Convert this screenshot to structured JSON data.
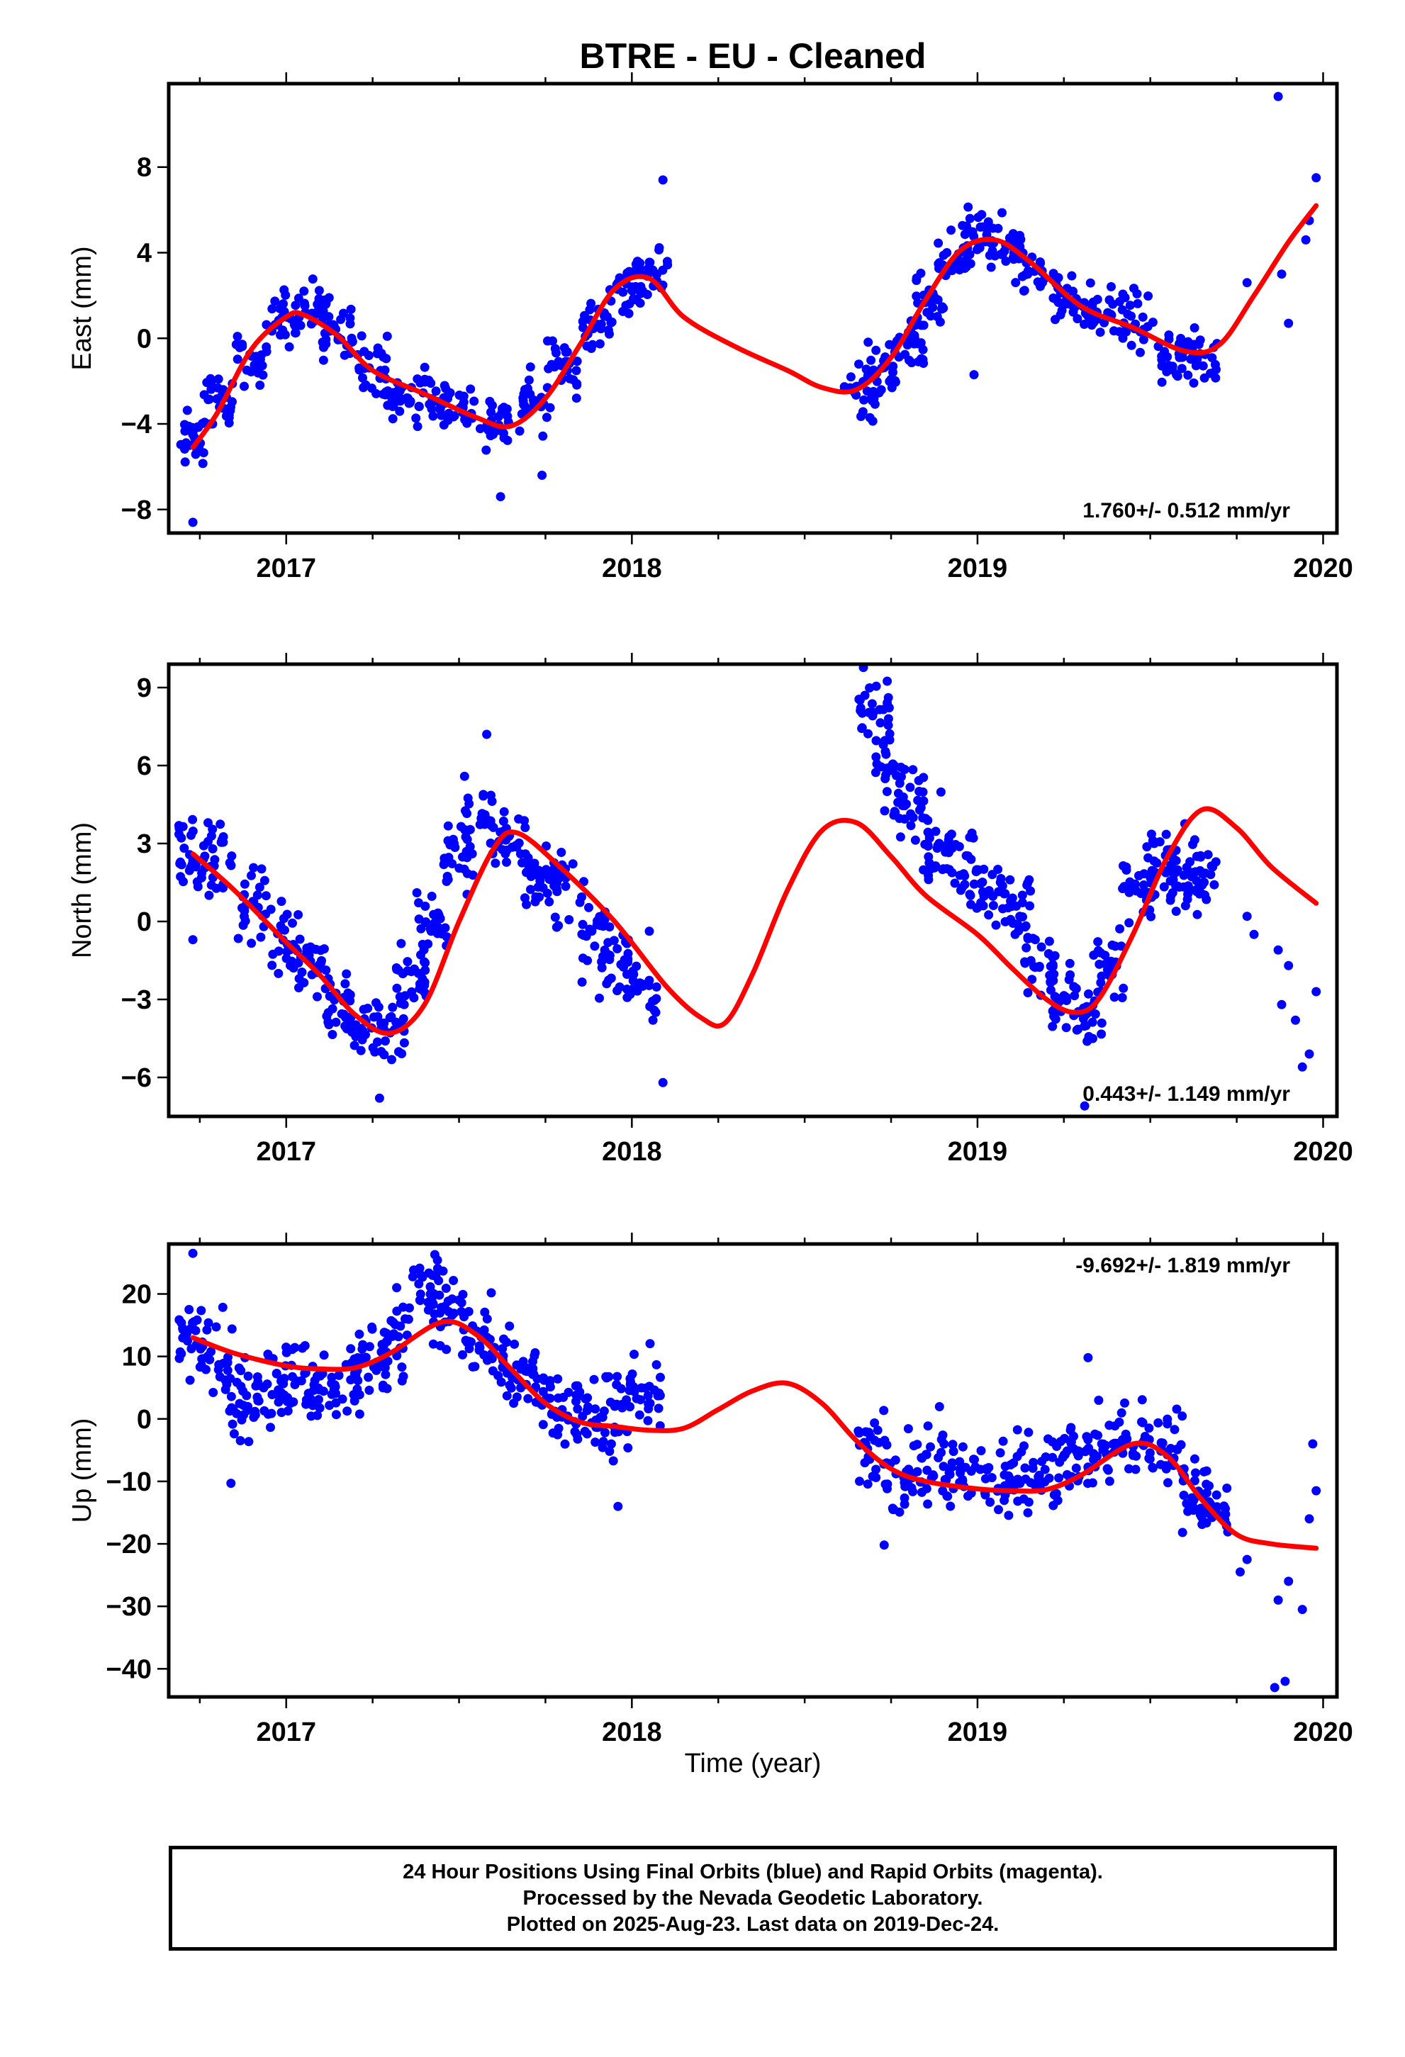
{
  "title": "BTRE  - EU - Cleaned",
  "xlabel": "Time (year)",
  "footer": {
    "line1": "24 Hour Positions Using Final Orbits (blue) and Rapid Orbits (magenta).",
    "line2": "Processed by the Nevada Geodetic Laboratory.",
    "line3": "Plotted on 2025-Aug-23. Last data on 2019-Dec-24."
  },
  "colors": {
    "points": "#0000ff",
    "fit": "#ff0000",
    "frame": "#000000"
  },
  "chart_data": [
    {
      "type": "scatter",
      "ylabel": "East (mm)",
      "rate_text": "1.760+/- 0.512 mm/yr",
      "rate_position": "bottom-right",
      "xlim": [
        2016.66,
        2020.04
      ],
      "ylim": [
        -9.1,
        11.9
      ],
      "yticks": [
        -8,
        -4,
        0,
        4,
        8
      ],
      "xticks": [
        2017,
        2018,
        2019,
        2020
      ],
      "legend": "none",
      "fit": {
        "x": [
          2016.73,
          2016.8,
          2016.9,
          2017.0,
          2017.05,
          2017.15,
          2017.25,
          2017.4,
          2017.55,
          2017.65,
          2017.75,
          2017.85,
          2017.95,
          2018.05,
          2018.15,
          2018.3,
          2018.45,
          2018.55,
          2018.65,
          2018.75,
          2018.85,
          2018.95,
          2019.05,
          2019.15,
          2019.3,
          2019.45,
          2019.6,
          2019.7,
          2019.8,
          2019.9,
          2019.98
        ],
        "y": [
          -5.1,
          -3.5,
          -0.5,
          1.0,
          1.1,
          0.1,
          -1.5,
          -2.6,
          -3.7,
          -4.1,
          -2.8,
          -0.3,
          2.3,
          2.8,
          1.0,
          -0.4,
          -1.5,
          -2.3,
          -2.4,
          -0.9,
          1.8,
          4.1,
          4.6,
          3.6,
          1.5,
          0.5,
          -0.6,
          -0.3,
          2.0,
          4.5,
          6.2
        ]
      },
      "clusters": [
        {
          "x": 2016.73,
          "y": -4.8
        },
        {
          "x": 2016.8,
          "y": -3.0
        },
        {
          "x": 2016.9,
          "y": -0.8
        },
        {
          "x": 2017.0,
          "y": 0.9
        },
        {
          "x": 2017.08,
          "y": 1.3
        },
        {
          "x": 2017.15,
          "y": 0.3
        },
        {
          "x": 2017.25,
          "y": -1.2
        },
        {
          "x": 2017.32,
          "y": -2.8
        },
        {
          "x": 2017.42,
          "y": -2.7
        },
        {
          "x": 2017.5,
          "y": -3.1
        },
        {
          "x": 2017.6,
          "y": -4.0
        },
        {
          "x": 2017.72,
          "y": -3.0
        },
        {
          "x": 2017.8,
          "y": -1.2
        },
        {
          "x": 2017.9,
          "y": 0.6
        },
        {
          "x": 2017.98,
          "y": 2.5
        },
        {
          "x": 2018.06,
          "y": 3.0
        },
        {
          "x": 2018.66,
          "y": -2.6
        },
        {
          "x": 2018.72,
          "y": -1.5
        },
        {
          "x": 2018.8,
          "y": -0.5
        },
        {
          "x": 2018.86,
          "y": 1.5
        },
        {
          "x": 2018.93,
          "y": 3.5
        },
        {
          "x": 2019.0,
          "y": 4.8
        },
        {
          "x": 2019.08,
          "y": 4.3
        },
        {
          "x": 2019.15,
          "y": 3.4
        },
        {
          "x": 2019.25,
          "y": 2.0
        },
        {
          "x": 2019.35,
          "y": 1.2
        },
        {
          "x": 2019.45,
          "y": 0.8
        },
        {
          "x": 2019.55,
          "y": -0.8
        },
        {
          "x": 2019.65,
          "y": -0.9
        }
      ],
      "outliers": [
        {
          "x": 2016.73,
          "y": -8.6
        },
        {
          "x": 2017.62,
          "y": -7.4
        },
        {
          "x": 2018.09,
          "y": 7.4
        },
        {
          "x": 2017.74,
          "y": -6.4
        },
        {
          "x": 2018.99,
          "y": -1.7
        },
        {
          "x": 2019.78,
          "y": 2.6
        },
        {
          "x": 2019.87,
          "y": 11.3
        },
        {
          "x": 2019.9,
          "y": 0.7
        },
        {
          "x": 2019.88,
          "y": 3.0
        },
        {
          "x": 2019.95,
          "y": 4.6
        },
        {
          "x": 2019.98,
          "y": 7.5
        },
        {
          "x": 2019.96,
          "y": 5.5
        }
      ],
      "spread": 0.9
    },
    {
      "type": "scatter",
      "ylabel": "North (mm)",
      "rate_text": "0.443+/- 1.149 mm/yr",
      "rate_position": "bottom-right",
      "xlim": [
        2016.66,
        2020.04
      ],
      "ylim": [
        -7.5,
        9.9
      ],
      "yticks": [
        -6,
        -3,
        0,
        3,
        6,
        9
      ],
      "xticks": [
        2017,
        2018,
        2019,
        2020
      ],
      "legend": "none",
      "fit": {
        "x": [
          2016.73,
          2016.85,
          2017.0,
          2017.1,
          2017.2,
          2017.3,
          2017.4,
          2017.5,
          2017.6,
          2017.67,
          2017.8,
          2017.95,
          2018.1,
          2018.2,
          2018.27,
          2018.35,
          2018.45,
          2018.55,
          2018.65,
          2018.75,
          2018.85,
          2019.0,
          2019.1,
          2019.2,
          2019.28,
          2019.35,
          2019.45,
          2019.55,
          2019.65,
          2019.75,
          2019.85,
          2019.98
        ],
        "y": [
          2.6,
          1.2,
          -0.8,
          -2.1,
          -3.6,
          -4.3,
          -3.2,
          0.0,
          2.8,
          3.4,
          2.0,
          0.0,
          -2.5,
          -3.7,
          -3.9,
          -2.0,
          1.2,
          3.5,
          3.8,
          2.5,
          1.0,
          -0.5,
          -1.8,
          -3.0,
          -3.5,
          -3.0,
          -0.5,
          2.5,
          4.3,
          3.6,
          2.1,
          0.7
        ]
      },
      "clusters": [
        {
          "x": 2016.73,
          "y": 2.7
        },
        {
          "x": 2016.8,
          "y": 2.3
        },
        {
          "x": 2016.9,
          "y": 0.8
        },
        {
          "x": 2017.0,
          "y": -0.8
        },
        {
          "x": 2017.08,
          "y": -1.5
        },
        {
          "x": 2017.15,
          "y": -3.2
        },
        {
          "x": 2017.22,
          "y": -4.2
        },
        {
          "x": 2017.3,
          "y": -3.9
        },
        {
          "x": 2017.36,
          "y": -2.2
        },
        {
          "x": 2017.42,
          "y": 0.0
        },
        {
          "x": 2017.5,
          "y": 2.5
        },
        {
          "x": 2017.56,
          "y": 4.0
        },
        {
          "x": 2017.65,
          "y": 3.0
        },
        {
          "x": 2017.73,
          "y": 2.0
        },
        {
          "x": 2017.8,
          "y": 1.2
        },
        {
          "x": 2017.88,
          "y": -0.5
        },
        {
          "x": 2017.95,
          "y": -1.3
        },
        {
          "x": 2018.03,
          "y": -2.3
        },
        {
          "x": 2018.7,
          "y": 8.0
        },
        {
          "x": 2018.75,
          "y": 6.0
        },
        {
          "x": 2018.8,
          "y": 4.4
        },
        {
          "x": 2018.88,
          "y": 3.3
        },
        {
          "x": 2018.95,
          "y": 2.2
        },
        {
          "x": 2019.03,
          "y": 1.5
        },
        {
          "x": 2019.12,
          "y": 0.5
        },
        {
          "x": 2019.18,
          "y": -1.5
        },
        {
          "x": 2019.25,
          "y": -3.0
        },
        {
          "x": 2019.32,
          "y": -3.8
        },
        {
          "x": 2019.38,
          "y": -2.0
        },
        {
          "x": 2019.46,
          "y": 1.2
        },
        {
          "x": 2019.53,
          "y": 2.0
        },
        {
          "x": 2019.6,
          "y": 1.8
        },
        {
          "x": 2019.65,
          "y": 1.6
        }
      ],
      "outliers": [
        {
          "x": 2016.73,
          "y": -0.7
        },
        {
          "x": 2017.27,
          "y": -6.8
        },
        {
          "x": 2017.58,
          "y": 7.2
        },
        {
          "x": 2018.09,
          "y": -6.2
        },
        {
          "x": 2019.31,
          "y": -7.1
        },
        {
          "x": 2019.78,
          "y": 0.2
        },
        {
          "x": 2019.8,
          "y": -0.5
        },
        {
          "x": 2019.87,
          "y": -1.1
        },
        {
          "x": 2019.9,
          "y": -1.7
        },
        {
          "x": 2019.88,
          "y": -3.2
        },
        {
          "x": 2019.92,
          "y": -3.8
        },
        {
          "x": 2019.96,
          "y": -5.1
        },
        {
          "x": 2019.94,
          "y": -5.6
        },
        {
          "x": 2019.98,
          "y": -2.7
        }
      ],
      "spread": 1.0
    },
    {
      "type": "scatter",
      "ylabel": "Up (mm)",
      "rate_text": "-9.692+/- 1.819 mm/yr",
      "rate_position": "top-right",
      "xlim": [
        2016.66,
        2020.04
      ],
      "ylim": [
        -44.5,
        28.0
      ],
      "yticks": [
        -40,
        -30,
        -20,
        -10,
        0,
        10,
        20
      ],
      "xticks": [
        2017,
        2018,
        2019,
        2020
      ],
      "legend": "none",
      "fit": {
        "x": [
          2016.73,
          2016.85,
          2017.0,
          2017.1,
          2017.2,
          2017.3,
          2017.45,
          2017.55,
          2017.65,
          2017.75,
          2017.85,
          2017.95,
          2018.05,
          2018.15,
          2018.25,
          2018.35,
          2018.45,
          2018.55,
          2018.65,
          2018.75,
          2018.85,
          2019.0,
          2019.1,
          2019.2,
          2019.3,
          2019.45,
          2019.55,
          2019.65,
          2019.75,
          2019.85,
          2019.98
        ],
        "y": [
          13.0,
          10.5,
          8.5,
          8.0,
          8.2,
          10.5,
          15.5,
          13.5,
          8.0,
          2.5,
          -0.5,
          -1.2,
          -1.8,
          -1.5,
          1.5,
          4.5,
          5.7,
          2.5,
          -3.5,
          -8.0,
          -10.0,
          -11.2,
          -11.5,
          -11.3,
          -9.0,
          -4.0,
          -6.0,
          -13.0,
          -18.5,
          -20.0,
          -20.7
        ]
      },
      "clusters": [
        {
          "x": 2016.73,
          "y": 12.5
        },
        {
          "x": 2016.8,
          "y": 9.0
        },
        {
          "x": 2016.88,
          "y": 3.5
        },
        {
          "x": 2016.95,
          "y": 5.0
        },
        {
          "x": 2017.02,
          "y": 6.5
        },
        {
          "x": 2017.1,
          "y": 4.0
        },
        {
          "x": 2017.17,
          "y": 6.0
        },
        {
          "x": 2017.25,
          "y": 9.5
        },
        {
          "x": 2017.32,
          "y": 14.0
        },
        {
          "x": 2017.4,
          "y": 20.0
        },
        {
          "x": 2017.47,
          "y": 18.0
        },
        {
          "x": 2017.55,
          "y": 13.0
        },
        {
          "x": 2017.63,
          "y": 8.5
        },
        {
          "x": 2017.72,
          "y": 5.0
        },
        {
          "x": 2017.8,
          "y": 3.0
        },
        {
          "x": 2017.88,
          "y": 0.5
        },
        {
          "x": 2017.96,
          "y": 1.5
        },
        {
          "x": 2018.04,
          "y": 3.5
        },
        {
          "x": 2018.7,
          "y": -5.0
        },
        {
          "x": 2018.78,
          "y": -9.5
        },
        {
          "x": 2018.87,
          "y": -7.0
        },
        {
          "x": 2018.95,
          "y": -9.0
        },
        {
          "x": 2019.05,
          "y": -10.0
        },
        {
          "x": 2019.13,
          "y": -8.5
        },
        {
          "x": 2019.22,
          "y": -7.0
        },
        {
          "x": 2019.3,
          "y": -6.0
        },
        {
          "x": 2019.38,
          "y": -4.0
        },
        {
          "x": 2019.46,
          "y": -3.5
        },
        {
          "x": 2019.55,
          "y": -5.5
        },
        {
          "x": 2019.63,
          "y": -11.0
        },
        {
          "x": 2019.68,
          "y": -15.0
        }
      ],
      "outliers": [
        {
          "x": 2016.73,
          "y": 26.5
        },
        {
          "x": 2017.43,
          "y": 26.3
        },
        {
          "x": 2016.84,
          "y": -10.3
        },
        {
          "x": 2017.96,
          "y": -14.0
        },
        {
          "x": 2018.73,
          "y": -20.2
        },
        {
          "x": 2019.32,
          "y": 9.8
        },
        {
          "x": 2019.78,
          "y": -22.5
        },
        {
          "x": 2019.76,
          "y": -24.5
        },
        {
          "x": 2019.87,
          "y": -29.0
        },
        {
          "x": 2019.9,
          "y": -26.0
        },
        {
          "x": 2019.94,
          "y": -30.5
        },
        {
          "x": 2019.96,
          "y": -16.0
        },
        {
          "x": 2019.98,
          "y": -11.5
        },
        {
          "x": 2019.97,
          "y": -4.0
        },
        {
          "x": 2019.86,
          "y": -43.0
        },
        {
          "x": 2019.89,
          "y": -42.0
        }
      ],
      "spread": 4.5
    }
  ]
}
